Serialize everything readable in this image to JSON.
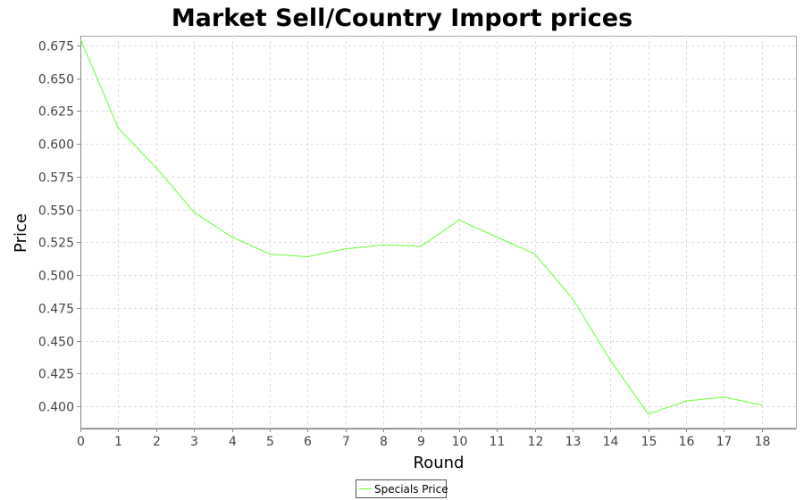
{
  "chart_data": {
    "type": "line",
    "title": "Market Sell/Country Import prices",
    "xlabel": "Round",
    "ylabel": "Price",
    "x": [
      0,
      1,
      2,
      3,
      4,
      5,
      6,
      7,
      8,
      9,
      10,
      11,
      12,
      13,
      14,
      15,
      16,
      17,
      18
    ],
    "xlim": [
      0,
      18.9
    ],
    "ylim": [
      0.383,
      0.6825
    ],
    "x_ticks": [
      "0",
      "1",
      "2",
      "3",
      "4",
      "5",
      "6",
      "7",
      "8",
      "9",
      "10",
      "11",
      "12",
      "13",
      "14",
      "15",
      "16",
      "17",
      "18"
    ],
    "y_ticks": [
      "0.400",
      "0.425",
      "0.450",
      "0.475",
      "0.500",
      "0.525",
      "0.550",
      "0.575",
      "0.600",
      "0.625",
      "0.650",
      "0.675"
    ],
    "grid": true,
    "legend_position": "bottom",
    "series": [
      {
        "name": "Specials Price",
        "color": "#66ff33",
        "values": [
          0.68,
          0.612,
          0.582,
          0.548,
          0.529,
          0.516,
          0.514,
          0.52,
          0.523,
          0.522,
          0.542,
          0.529,
          0.516,
          0.482,
          0.435,
          0.394,
          0.404,
          0.407,
          0.401
        ]
      }
    ]
  }
}
